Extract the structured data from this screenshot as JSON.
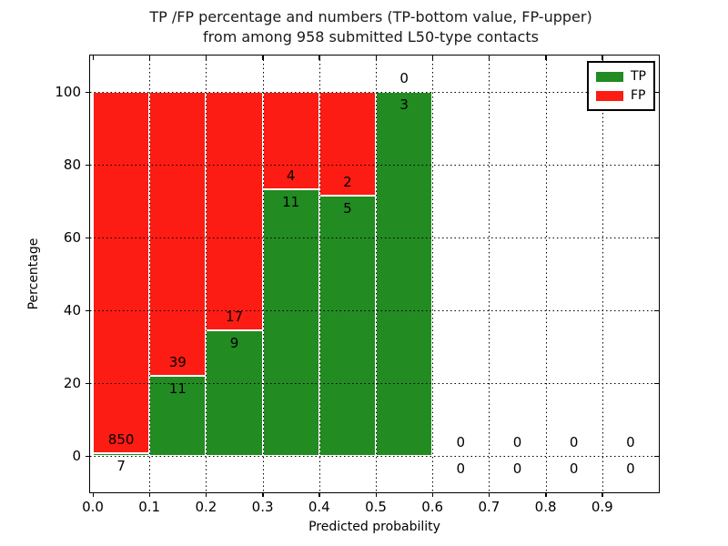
{
  "figure": {
    "title_line1": "TP /FP percentage and numbers (TP-bottom value, FP-upper)",
    "title_line2": "from among 958 submitted L50-type contacts"
  },
  "chart_data": {
    "type": "bar",
    "subtype": "stacked-percentage-histogram",
    "title": "TP /FP percentage and numbers (TP-bottom value, FP-upper) from among 958 submitted L50-type contacts",
    "total_submitted_contacts": 958,
    "xlabel": "Predicted probability",
    "ylabel": "Percentage",
    "xlim": [
      0,
      1
    ],
    "ylim": [
      -10,
      110
    ],
    "grid": true,
    "x_ticks": [
      {
        "value": 0.0,
        "label": "0.0"
      },
      {
        "value": 0.1,
        "label": "0.1"
      },
      {
        "value": 0.2,
        "label": "0.2"
      },
      {
        "value": 0.3,
        "label": "0.3"
      },
      {
        "value": 0.4,
        "label": "0.4"
      },
      {
        "value": 0.5,
        "label": "0.5"
      },
      {
        "value": 0.6,
        "label": "0.6"
      },
      {
        "value": 0.7,
        "label": "0.7"
      },
      {
        "value": 0.8,
        "label": "0.8"
      },
      {
        "value": 0.9,
        "label": "0.9"
      }
    ],
    "y_ticks": [
      {
        "value": 0,
        "label": "0"
      },
      {
        "value": 20,
        "label": "20"
      },
      {
        "value": 40,
        "label": "40"
      },
      {
        "value": 60,
        "label": "60"
      },
      {
        "value": 80,
        "label": "80"
      },
      {
        "value": 100,
        "label": "100"
      }
    ],
    "legend": {
      "position": "upper-right",
      "entries": [
        {
          "label": "TP",
          "color": "#228b22"
        },
        {
          "label": "FP",
          "color": "#fc1c13"
        }
      ]
    },
    "bins": [
      {
        "range": [
          0.0,
          0.1
        ],
        "tp": 7,
        "fp": 850
      },
      {
        "range": [
          0.1,
          0.2
        ],
        "tp": 11,
        "fp": 39
      },
      {
        "range": [
          0.2,
          0.3
        ],
        "tp": 9,
        "fp": 17
      },
      {
        "range": [
          0.3,
          0.4
        ],
        "tp": 11,
        "fp": 4
      },
      {
        "range": [
          0.4,
          0.5
        ],
        "tp": 5,
        "fp": 2
      },
      {
        "range": [
          0.5,
          0.6
        ],
        "tp": 3,
        "fp": 0
      },
      {
        "range": [
          0.6,
          0.7
        ],
        "tp": 0,
        "fp": 0
      },
      {
        "range": [
          0.7,
          0.8
        ],
        "tp": 0,
        "fp": 0
      },
      {
        "range": [
          0.8,
          0.9
        ],
        "tp": 0,
        "fp": 0
      },
      {
        "range": [
          0.9,
          1.0
        ],
        "tp": 0,
        "fp": 0
      }
    ]
  },
  "colors": {
    "tp": "#228b22",
    "fp": "#fc1c13",
    "background": "#ffffff",
    "axis": "#000000",
    "grid": "#000000",
    "bar_edge": "#ffffff"
  }
}
